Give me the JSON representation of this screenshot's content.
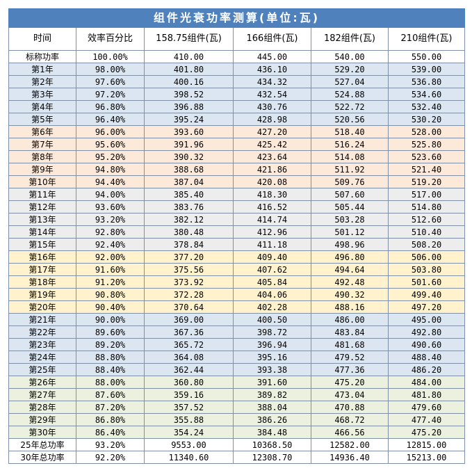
{
  "title": "组件光衰功率测算(单位:瓦)",
  "columns": [
    "时间",
    "效率百分比",
    "158.75组件(瓦)",
    "166组件(瓦)",
    "182组件(瓦)",
    "210组件(瓦)"
  ],
  "rows": [
    {
      "label": "标称功率",
      "values": [
        "100.00%",
        "410.00",
        "445.00",
        "540.00",
        "550.00"
      ],
      "group": "white"
    },
    {
      "label": "第1年",
      "values": [
        "98.00%",
        "401.80",
        "436.10",
        "529.20",
        "539.00"
      ],
      "group": "blue"
    },
    {
      "label": "第2年",
      "values": [
        "97.60%",
        "400.16",
        "434.32",
        "527.04",
        "536.80"
      ],
      "group": "blue"
    },
    {
      "label": "第3年",
      "values": [
        "97.20%",
        "398.52",
        "432.54",
        "524.88",
        "534.60"
      ],
      "group": "blue"
    },
    {
      "label": "第4年",
      "values": [
        "96.80%",
        "396.88",
        "430.76",
        "522.72",
        "532.40"
      ],
      "group": "blue"
    },
    {
      "label": "第5年",
      "values": [
        "96.40%",
        "395.24",
        "428.98",
        "520.56",
        "530.20"
      ],
      "group": "blue"
    },
    {
      "label": "第6年",
      "values": [
        "96.00%",
        "393.60",
        "427.20",
        "518.40",
        "528.00"
      ],
      "group": "peach"
    },
    {
      "label": "第7年",
      "values": [
        "95.60%",
        "391.96",
        "425.42",
        "516.24",
        "525.80"
      ],
      "group": "peach"
    },
    {
      "label": "第8年",
      "values": [
        "95.20%",
        "390.32",
        "423.64",
        "514.08",
        "523.60"
      ],
      "group": "peach"
    },
    {
      "label": "第9年",
      "values": [
        "94.80%",
        "388.68",
        "421.86",
        "511.92",
        "521.40"
      ],
      "group": "peach"
    },
    {
      "label": "第10年",
      "values": [
        "94.40%",
        "387.04",
        "420.08",
        "509.76",
        "519.20"
      ],
      "group": "peach"
    },
    {
      "label": "第11年",
      "values": [
        "94.00%",
        "385.40",
        "418.30",
        "507.60",
        "517.00"
      ],
      "group": "gray"
    },
    {
      "label": "第12年",
      "values": [
        "93.60%",
        "383.76",
        "416.52",
        "505.44",
        "514.80"
      ],
      "group": "gray"
    },
    {
      "label": "第13年",
      "values": [
        "93.20%",
        "382.12",
        "414.74",
        "503.28",
        "512.60"
      ],
      "group": "gray"
    },
    {
      "label": "第14年",
      "values": [
        "92.80%",
        "380.48",
        "412.96",
        "501.12",
        "510.40"
      ],
      "group": "gray"
    },
    {
      "label": "第15年",
      "values": [
        "92.40%",
        "378.84",
        "411.18",
        "498.96",
        "508.20"
      ],
      "group": "gray"
    },
    {
      "label": "第16年",
      "values": [
        "92.00%",
        "377.20",
        "409.40",
        "496.80",
        "506.00"
      ],
      "group": "yellow"
    },
    {
      "label": "第17年",
      "values": [
        "91.60%",
        "375.56",
        "407.62",
        "494.64",
        "503.80"
      ],
      "group": "yellow"
    },
    {
      "label": "第18年",
      "values": [
        "91.20%",
        "373.92",
        "405.84",
        "492.48",
        "501.60"
      ],
      "group": "yellow"
    },
    {
      "label": "第19年",
      "values": [
        "90.80%",
        "372.28",
        "404.06",
        "490.32",
        "499.40"
      ],
      "group": "yellow"
    },
    {
      "label": "第20年",
      "values": [
        "90.40%",
        "370.64",
        "402.28",
        "488.16",
        "497.20"
      ],
      "group": "yellow"
    },
    {
      "label": "第21年",
      "values": [
        "90.00%",
        "369.00",
        "400.50",
        "486.00",
        "495.00"
      ],
      "group": "blue"
    },
    {
      "label": "第22年",
      "values": [
        "89.60%",
        "367.36",
        "398.72",
        "483.84",
        "492.80"
      ],
      "group": "blue"
    },
    {
      "label": "第23年",
      "values": [
        "89.20%",
        "365.72",
        "396.94",
        "481.68",
        "490.60"
      ],
      "group": "blue"
    },
    {
      "label": "第24年",
      "values": [
        "88.80%",
        "364.08",
        "395.16",
        "479.52",
        "488.40"
      ],
      "group": "blue"
    },
    {
      "label": "第25年",
      "values": [
        "88.40%",
        "362.44",
        "393.38",
        "477.36",
        "486.20"
      ],
      "group": "blue"
    },
    {
      "label": "第26年",
      "values": [
        "88.00%",
        "360.80",
        "391.60",
        "475.20",
        "484.00"
      ],
      "group": "green"
    },
    {
      "label": "第27年",
      "values": [
        "87.60%",
        "359.16",
        "389.82",
        "473.04",
        "481.80"
      ],
      "group": "green"
    },
    {
      "label": "第28年",
      "values": [
        "87.20%",
        "357.52",
        "388.04",
        "470.88",
        "479.60"
      ],
      "group": "green"
    },
    {
      "label": "第29年",
      "values": [
        "86.80%",
        "355.88",
        "386.26",
        "468.72",
        "477.40"
      ],
      "group": "green"
    },
    {
      "label": "第30年",
      "values": [
        "86.40%",
        "354.24",
        "384.48",
        "466.56",
        "475.20"
      ],
      "group": "green"
    },
    {
      "label": "25年总功率",
      "values": [
        "93.20%",
        "9553.00",
        "10368.50",
        "12582.00",
        "12815.00"
      ],
      "group": "white"
    },
    {
      "label": "30年总功率",
      "values": [
        "92.20%",
        "11340.60",
        "12308.70",
        "14936.40",
        "15213.00"
      ],
      "group": "white"
    }
  ]
}
